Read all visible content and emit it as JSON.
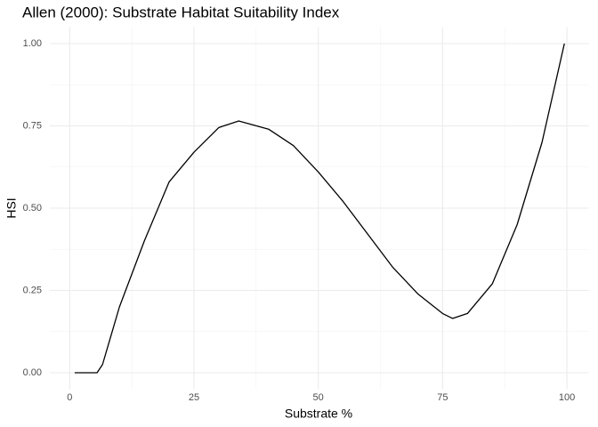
{
  "chart_data": {
    "type": "line",
    "title": "Allen (2000): Substrate Habitat Suitability Index",
    "x_label": "Substrate %",
    "y_label": "HSI",
    "x": [
      1,
      5.5,
      6.6,
      10,
      15,
      20,
      25,
      30,
      34,
      40,
      45,
      50,
      55,
      60,
      65,
      70,
      75,
      77,
      80,
      85,
      90,
      95,
      99.5
    ],
    "series": [
      {
        "color": "#000000",
        "values": [
          0,
          0,
          0.025,
          0.2,
          0.4,
          0.58,
          0.67,
          0.745,
          0.765,
          0.74,
          0.69,
          0.61,
          0.52,
          0.42,
          0.32,
          0.24,
          0.18,
          0.165,
          0.18,
          0.27,
          0.45,
          0.7,
          1.0
        ]
      }
    ],
    "xlim": [
      -4,
      104.4
    ],
    "xticks": [
      0,
      25,
      50,
      75,
      100
    ],
    "ylim": [
      -0.05,
      1.05
    ],
    "yticks": [
      {
        "value": 0,
        "label": "0.00"
      },
      {
        "value": 0.25,
        "label": "0.25"
      },
      {
        "value": 0.5,
        "label": "0.50"
      },
      {
        "value": 0.75,
        "label": "0.75"
      },
      {
        "value": 1,
        "label": "1.00"
      }
    ],
    "grid": true
  }
}
